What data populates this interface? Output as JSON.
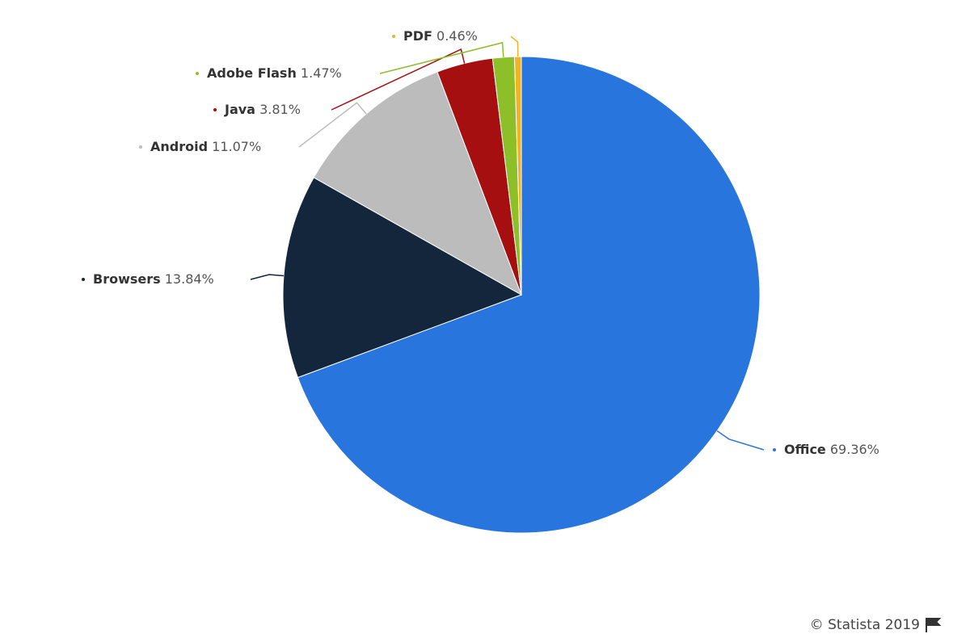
{
  "chart_data": {
    "type": "pie",
    "categories": [
      "Office",
      "Browsers",
      "Android",
      "Java",
      "Adobe Flash",
      "PDF"
    ],
    "values": [
      69.36,
      13.84,
      11.07,
      3.81,
      1.47,
      0.46
    ],
    "value_labels": [
      "69.36%",
      "13.84%",
      "11.07%",
      "3.81%",
      "1.47%",
      "0.46%"
    ],
    "colors": [
      "#2876dd",
      "#13263c",
      "#bcbcbc",
      "#a50f0f",
      "#8dbf28",
      "#f0b323"
    ],
    "credit": "© Statista 2019"
  }
}
